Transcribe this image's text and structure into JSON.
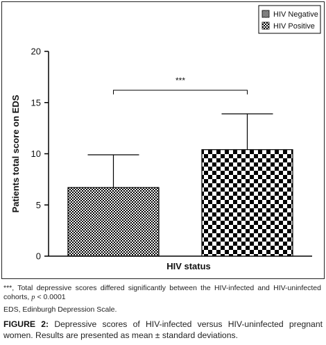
{
  "chart_data": {
    "type": "bar",
    "title": "",
    "xlabel": "HIV status",
    "ylabel": "Patients total score on EDS",
    "ylim": [
      0,
      20
    ],
    "yticks": [
      0,
      5,
      10,
      15,
      20
    ],
    "grid": false,
    "legend_position": "top-right",
    "series": [
      {
        "name": "HIV Negative",
        "value": 6.7,
        "error": 3.2,
        "pattern": "fine-checker"
      },
      {
        "name": "HIV Positive",
        "value": 10.4,
        "error": 3.5,
        "pattern": "coarse-checker"
      }
    ],
    "significance": {
      "label": "***",
      "between": [
        0,
        1
      ]
    }
  },
  "notes": {
    "significance_note": "***, Total depressive scores differed significantly between the HIV-infected and HIV-uninfected cohorts,",
    "p_symbol": "p",
    "p_value": "< 0.0001",
    "abbreviation_note": "EDS, Edinburgh Depression Scale."
  },
  "caption": {
    "label": "FIGURE 2:",
    "text": "Depressive scores of HIV-infected versus HIV-uninfected pregnant women. Results are presented as mean ± standard deviations."
  }
}
